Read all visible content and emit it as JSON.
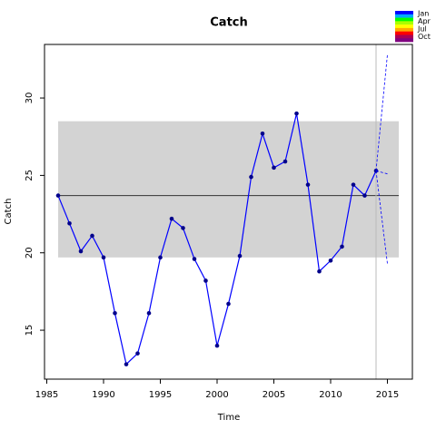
{
  "chart_data": {
    "type": "line",
    "title": "Catch",
    "xlabel": "Time",
    "ylabel": "Catch",
    "x": [
      1986,
      1987,
      1988,
      1989,
      1990,
      1991,
      1992,
      1993,
      1994,
      1995,
      1996,
      1997,
      1998,
      1999,
      2000,
      2001,
      2002,
      2003,
      2004,
      2005,
      2006,
      2007,
      2008,
      2009,
      2010,
      2011,
      2012,
      2013,
      2014,
      2015
    ],
    "series": [
      {
        "color": "#0000ff",
        "points": true,
        "dashed": false,
        "values": [
          23.7,
          21.9,
          20.1,
          21.1,
          19.7,
          16.1,
          12.8,
          13.5,
          16.1,
          19.7,
          22.2,
          21.6,
          19.6,
          18.2,
          14.0,
          16.7,
          19.8,
          24.9,
          27.7,
          25.5,
          25.9,
          29.0,
          24.4,
          18.8,
          19.5,
          20.4,
          24.4,
          23.7,
          25.3,
          null
        ]
      },
      {
        "color": "#0000ff",
        "points": false,
        "dashed": true,
        "values": [
          null,
          null,
          null,
          null,
          null,
          null,
          null,
          null,
          null,
          null,
          null,
          null,
          null,
          null,
          null,
          null,
          null,
          null,
          null,
          null,
          null,
          null,
          null,
          null,
          null,
          null,
          null,
          null,
          25.3,
          32.8
        ]
      },
      {
        "color": "#0000ff",
        "points": false,
        "dashed": true,
        "values": [
          null,
          null,
          null,
          null,
          null,
          null,
          null,
          null,
          null,
          null,
          null,
          null,
          null,
          null,
          null,
          null,
          null,
          null,
          null,
          null,
          null,
          null,
          null,
          null,
          null,
          null,
          null,
          null,
          25.3,
          25.1
        ]
      },
      {
        "color": "#0000ff",
        "points": false,
        "dashed": true,
        "values": [
          null,
          null,
          null,
          null,
          null,
          null,
          null,
          null,
          null,
          null,
          null,
          null,
          null,
          null,
          null,
          null,
          null,
          null,
          null,
          null,
          null,
          null,
          null,
          null,
          null,
          null,
          null,
          null,
          25.3,
          19.3
        ]
      }
    ],
    "band": [
      19.7,
      28.5
    ],
    "band_x": [
      1986,
      2016
    ],
    "band_color": "#d3d3d3",
    "hline": 23.7,
    "vline": 2014,
    "xlim": [
      1984.8,
      2017.2
    ],
    "ylim": [
      11.84,
      33.46
    ],
    "xticks": [
      1985,
      1990,
      1995,
      2000,
      2005,
      2010,
      2015
    ],
    "yticks": [
      15,
      20,
      25,
      30
    ],
    "legend": {
      "labels": [
        "Jan",
        "Apr",
        "Jul",
        "Oct"
      ],
      "colors": [
        "#0000ff",
        "#00aaff",
        "#00ff00",
        "#aaff00",
        "#ffff00",
        "#ffaa00",
        "#ff0000",
        "#aa0055",
        "#800080"
      ]
    }
  }
}
